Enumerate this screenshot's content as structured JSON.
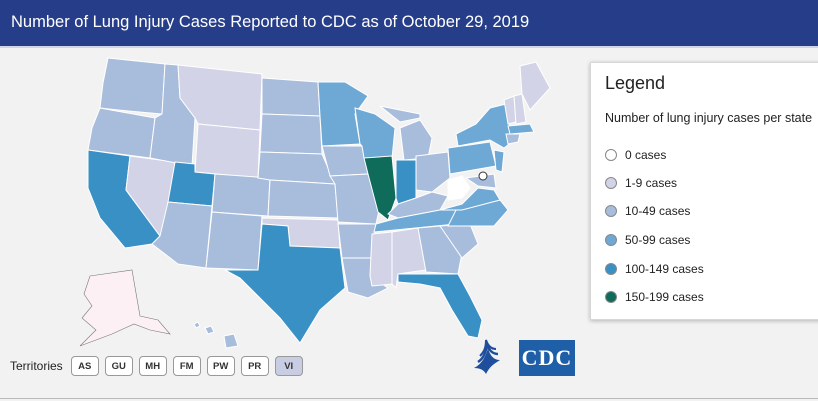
{
  "header": {
    "title": "Number of Lung Injury Cases Reported to CDC as of October 29, 2019"
  },
  "legend": {
    "title": "Legend",
    "subtitle": "Number of lung injury cases per state",
    "items": [
      {
        "label": "0 cases",
        "color": "#ffffff"
      },
      {
        "label": "1-9 cases",
        "color": "#d3d3e8"
      },
      {
        "label": "10-49 cases",
        "color": "#a8bcdc"
      },
      {
        "label": "50-99 cases",
        "color": "#6ea8d5"
      },
      {
        "label": "100-149 cases",
        "color": "#3990c4"
      },
      {
        "label": "150-199 cases",
        "color": "#0f6b5a"
      }
    ]
  },
  "territories": {
    "label": "Territories",
    "items": [
      "AS",
      "GU",
      "MH",
      "FM",
      "PW",
      "PR",
      "VI"
    ]
  },
  "logos": {
    "cdc_text": "CDC",
    "hhs": "hhs-eagle-logo"
  }
}
